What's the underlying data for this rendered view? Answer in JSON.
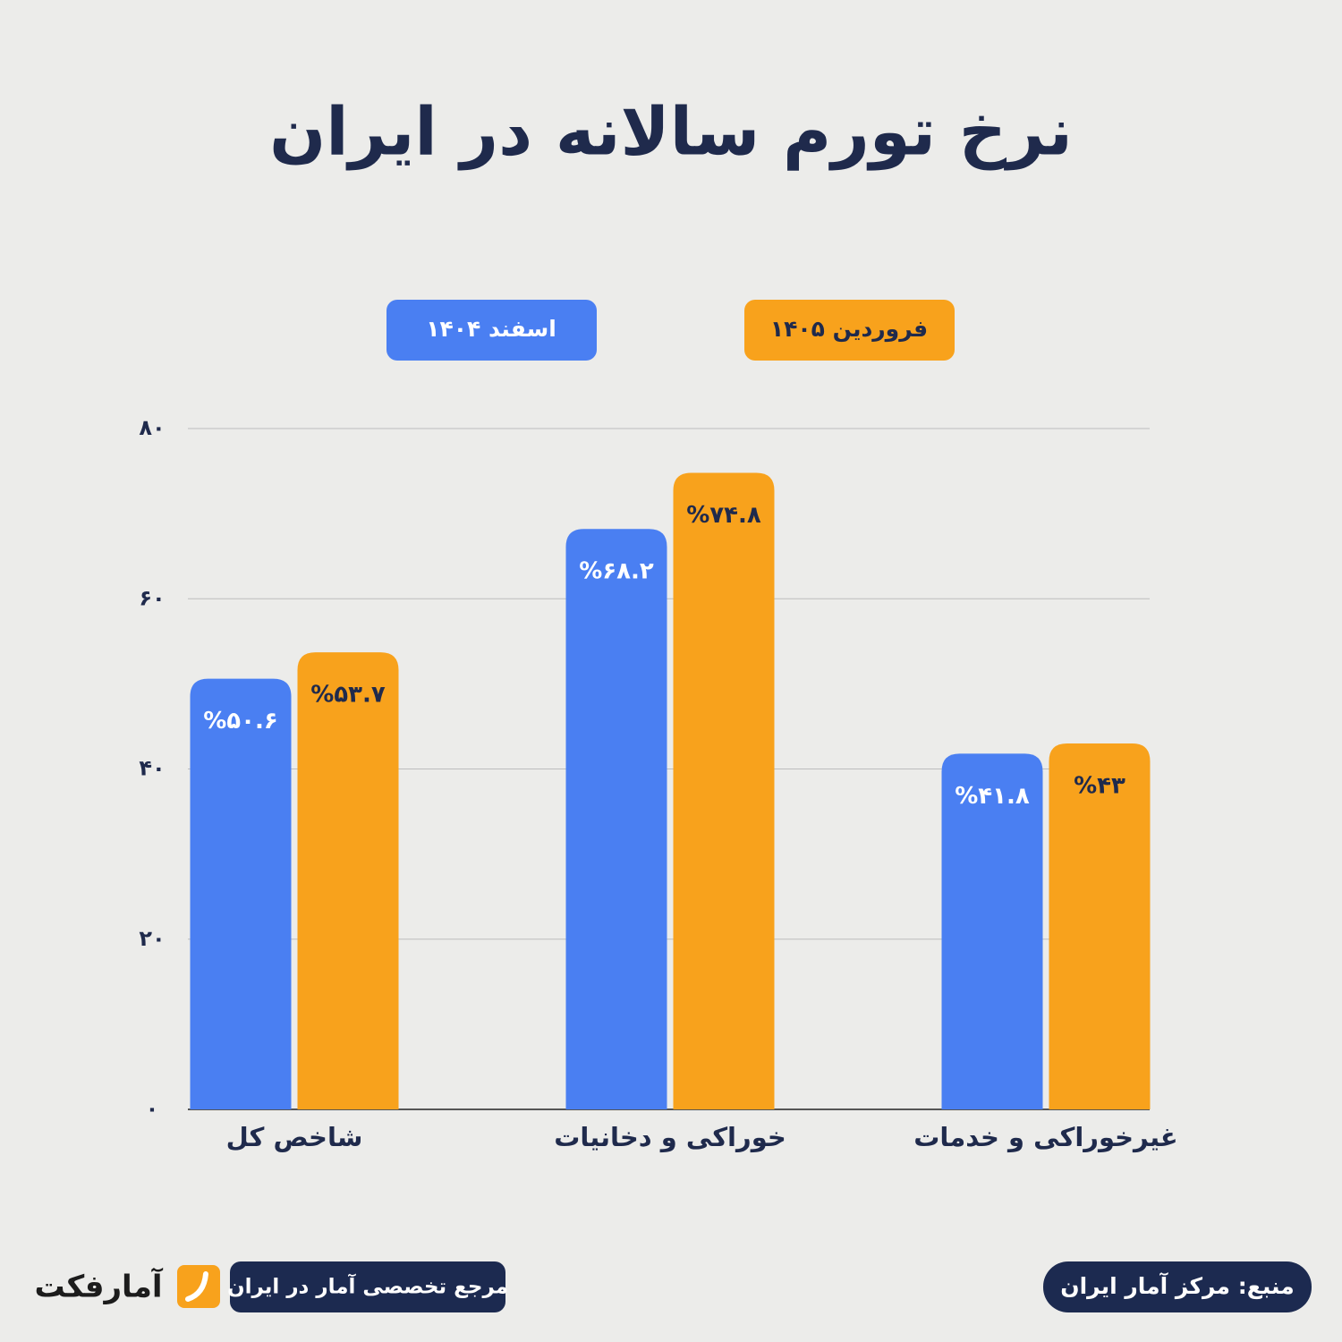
{
  "chart_data": {
    "type": "bar",
    "title": "نرخ تورم سالانه در ایران",
    "categories": [
      "شاخص کل",
      "خوراکی و دخانیات",
      "غیرخوراکی و خدمات"
    ],
    "series": [
      {
        "name": "اسفند ۱۴۰۴",
        "color": "#4a7ff2",
        "values": [
          50.6,
          68.2,
          41.8
        ],
        "value_labels": [
          "%۵۰.۶",
          "%۶۸.۲",
          "%۴۱.۸"
        ]
      },
      {
        "name": "فروردین ۱۴۰۵",
        "color": "#f8a21c",
        "values": [
          53.7,
          74.8,
          43
        ],
        "value_labels": [
          "%۵۳.۷",
          "%۷۴.۸",
          "%۴۳"
        ]
      }
    ],
    "ylim": [
      0,
      80
    ],
    "yticks": [
      {
        "value": 0,
        "label": "۰"
      },
      {
        "value": 20,
        "label": "۲۰"
      },
      {
        "value": 40,
        "label": "۴۰"
      },
      {
        "value": 60,
        "label": "۶۰"
      },
      {
        "value": 80,
        "label": "۸۰"
      }
    ],
    "grid": true
  },
  "footer": {
    "brand": "آمارفکت",
    "tagline": "مرجع تخصصی آمار در ایران",
    "source": "منبع: مرکز آمار ایران"
  }
}
